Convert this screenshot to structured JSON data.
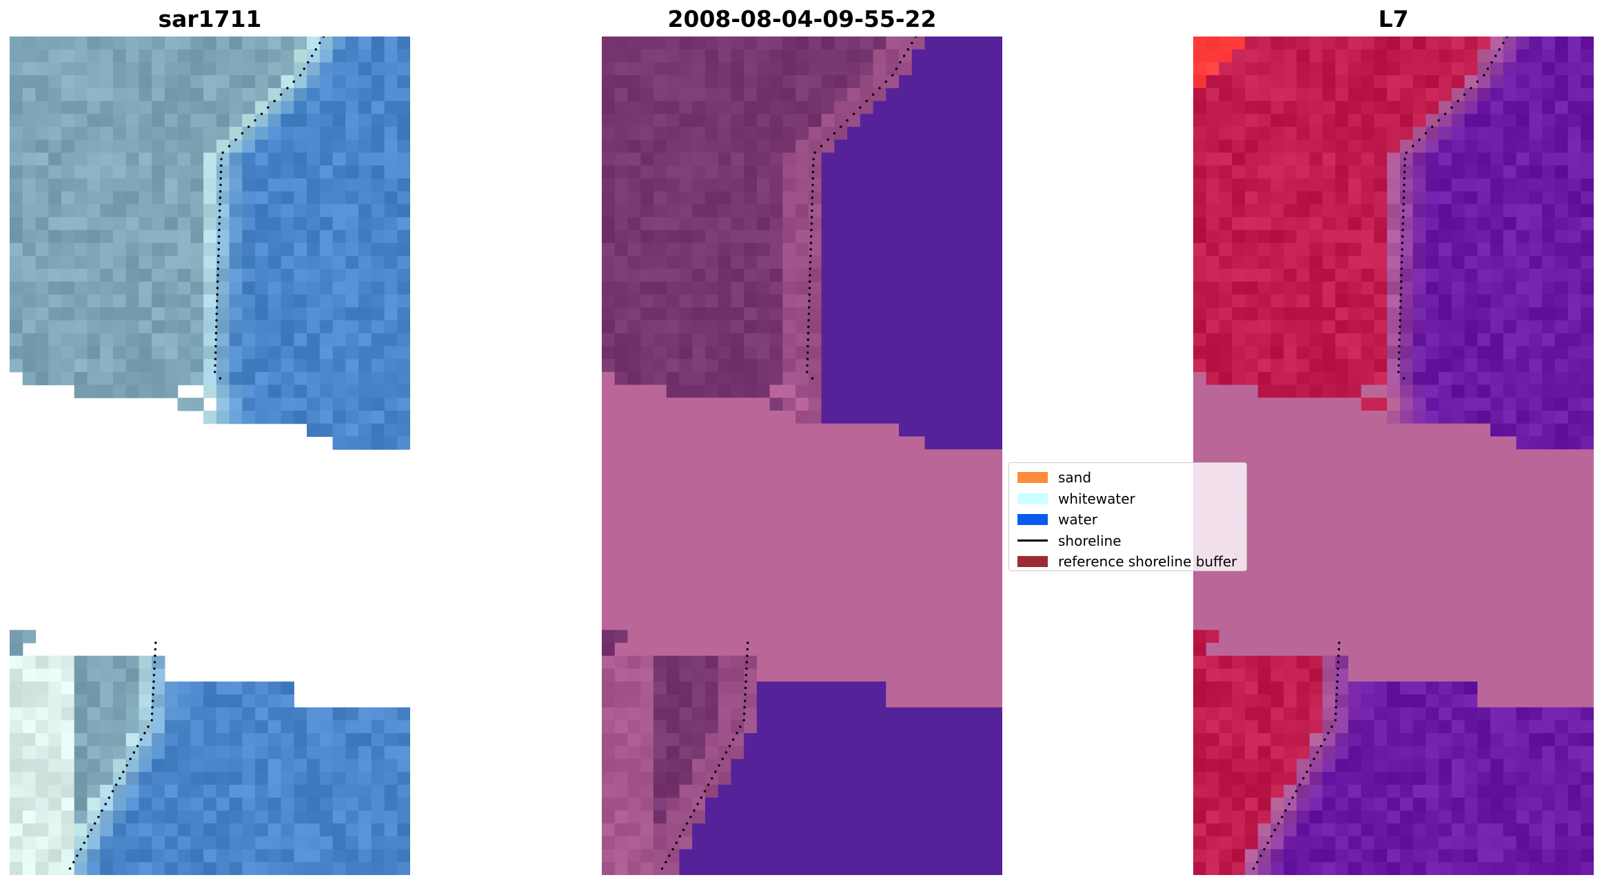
{
  "panels": [
    {
      "title": "sar1711",
      "kind": "rgb"
    },
    {
      "title": "2008-08-04-09-55-22",
      "kind": "classified"
    },
    {
      "title": "L7",
      "kind": "mndwi"
    }
  ],
  "legend": {
    "items": [
      {
        "label": "sand",
        "color": "#ff8c3a",
        "type": "patch"
      },
      {
        "label": "whitewater",
        "color": "#ccffff",
        "type": "patch"
      },
      {
        "label": "water",
        "color": "#0a5cf0",
        "type": "patch"
      },
      {
        "label": "shoreline",
        "color": "#000000",
        "type": "line"
      },
      {
        "label": "reference shoreline buffer",
        "color": "#9c2b33",
        "type": "patch"
      }
    ]
  },
  "colors": {
    "rgb_land": "#7ea6b6",
    "rgb_water": "#4a86c9",
    "rgb_whitewater": "#c8ece8",
    "class_land": "#773670",
    "class_water": "#552299",
    "class_buffer": "#bb6699",
    "mndwi_land": "#c01c4e",
    "mndwi_water": "#6a1aa4",
    "mndwi_buffer": "#bb6699",
    "mndwi_bright": "#ff3b3b"
  }
}
